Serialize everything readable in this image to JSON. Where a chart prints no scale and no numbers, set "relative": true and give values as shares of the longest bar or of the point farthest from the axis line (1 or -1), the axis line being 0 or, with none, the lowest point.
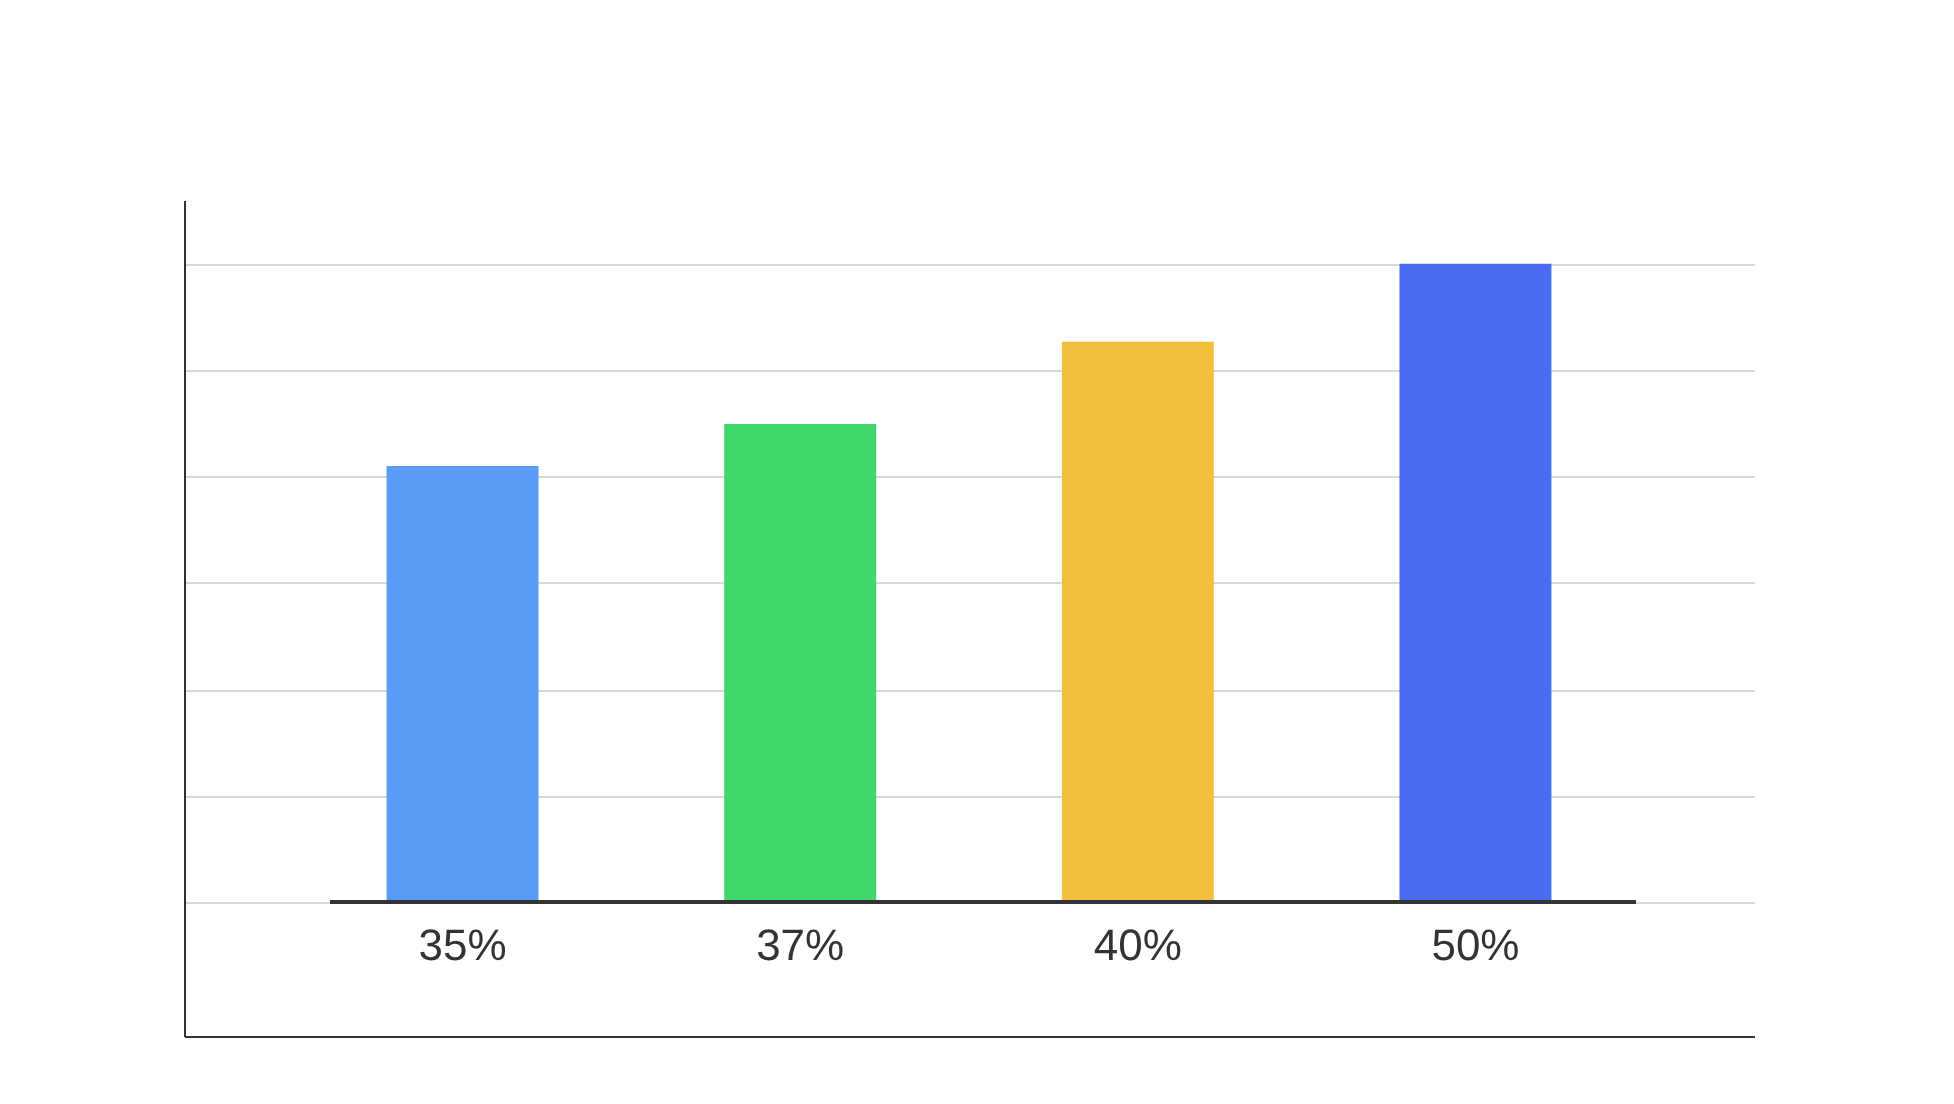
{
  "chart_data": {
    "type": "bar",
    "relative": true,
    "categories": [
      "35%",
      "37%",
      "40%",
      "50%"
    ],
    "values": [
      0.683,
      0.749,
      0.878,
      1
    ],
    "colors": [
      "#5a9bf8",
      "#3fd86a",
      "#f2bf3c",
      "#4a6cf0"
    ],
    "grid": "y",
    "legend": false
  }
}
